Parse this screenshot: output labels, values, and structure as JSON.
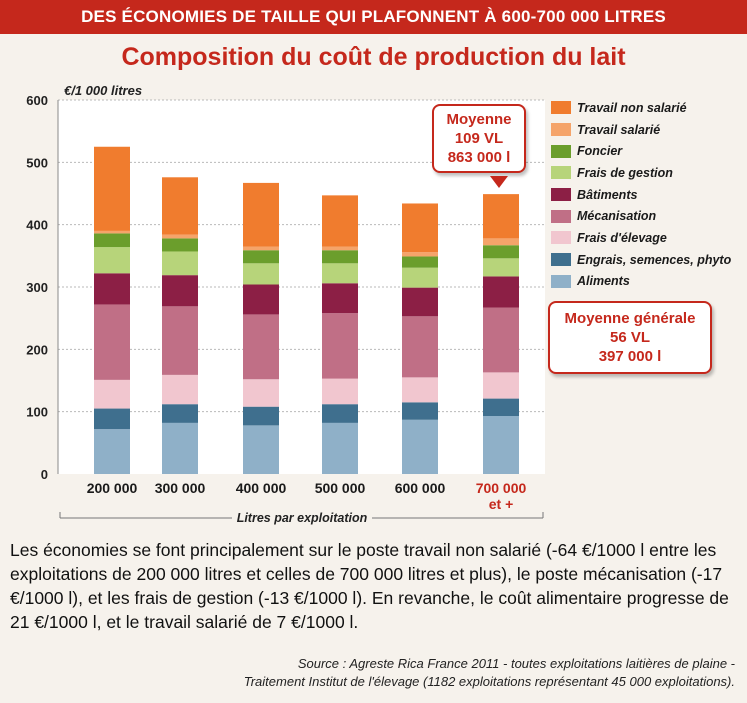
{
  "banner": "DES ÉCONOMIES DE TAILLE QUI PLAFONNENT À 600-700 000 LITRES",
  "callout_average": [
    "Moyenne",
    "109 VL",
    "863 000 l"
  ],
  "callout_general": [
    "Moyenne générale",
    "56 VL",
    "397 000 l"
  ],
  "caption": "Les économies se font principalement sur le poste travail non salarié (-64 €/1000 l entre les exploitations de 200 000 litres et celles de 700 000 litres et plus), le poste mécanisation (-17 €/1000 l), et les frais de gestion (-13 €/1000 l). En revanche, le coût alimentaire progresse de 21 €/1000 l, et le travail salarié de 7 €/1000 l.",
  "source_line1": "Source : Agreste Rica France 2011 - toutes exploitations laitières de plaine -",
  "source_line2": "Traitement Institut de l'élevage (1182 exploitations représentant 45 000 exploitations).",
  "chart_data": {
    "type": "bar",
    "stacked": true,
    "title": "Composition du coût de production du lait",
    "ylabel": "€/1 000 litres",
    "xlabel": "Litres par exploitation",
    "ylim": [
      0,
      600
    ],
    "yticks": [
      0,
      100,
      200,
      300,
      400,
      500,
      600
    ],
    "categories": [
      "200 000",
      "300 000",
      "400 000",
      "500 000",
      "600 000",
      "700 000 et +"
    ],
    "highlight_category_color": "#c5281c",
    "series": [
      {
        "name": "Aliments",
        "color": "#8fb0c8",
        "values": [
          72,
          82,
          78,
          82,
          87,
          93
        ]
      },
      {
        "name": "Engrais, semences, phyto",
        "color": "#3f6f8e",
        "values": [
          33,
          30,
          30,
          30,
          28,
          28
        ]
      },
      {
        "name": "Frais d'élevage",
        "color": "#f1c6cf",
        "values": [
          46,
          47,
          44,
          41,
          40,
          42
        ]
      },
      {
        "name": "Mécanisation",
        "color": "#c06f86",
        "values": [
          121,
          110,
          104,
          105,
          98,
          104
        ]
      },
      {
        "name": "Bâtiments",
        "color": "#8c1f45",
        "values": [
          50,
          50,
          48,
          48,
          46,
          50
        ]
      },
      {
        "name": "Frais de gestion",
        "color": "#b7d47a",
        "values": [
          42,
          38,
          34,
          32,
          32,
          29
        ]
      },
      {
        "name": "Foncier",
        "color": "#6b9e2c",
        "values": [
          22,
          21,
          21,
          21,
          18,
          21
        ]
      },
      {
        "name": "Travail salarié",
        "color": "#f5a46a",
        "values": [
          4,
          6,
          6,
          6,
          7,
          11
        ]
      },
      {
        "name": "Travail non salarié",
        "color": "#f07c2e",
        "values": [
          135,
          92,
          102,
          82,
          78,
          71
        ]
      }
    ],
    "legend_order": [
      "Travail non salarié",
      "Travail salarié",
      "Foncier",
      "Frais de gestion",
      "Bâtiments",
      "Mécanisation",
      "Frais d'élevage",
      "Engrais, semences, phyto",
      "Aliments"
    ],
    "grid": true,
    "legend_position": "right"
  }
}
